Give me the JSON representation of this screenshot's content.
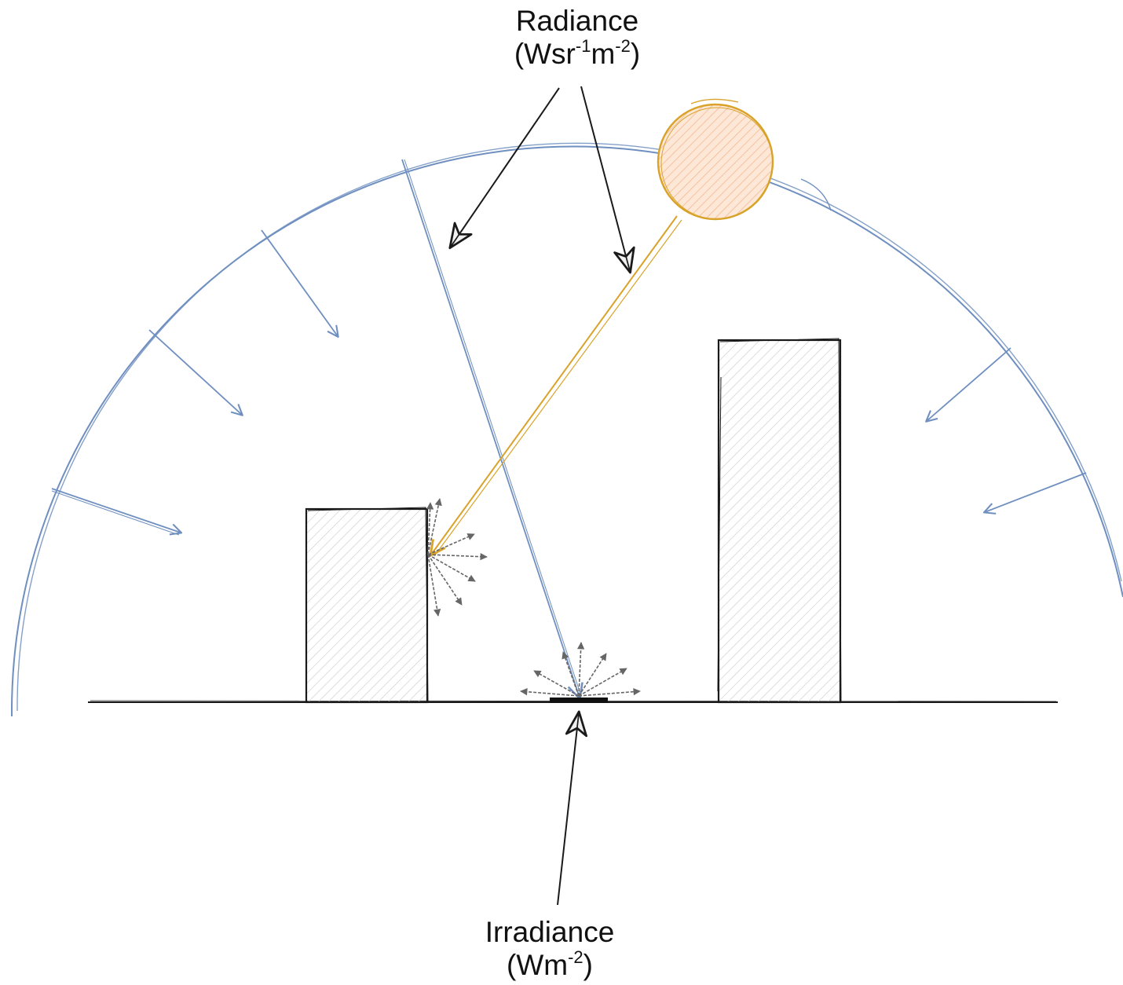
{
  "labels": {
    "radiance": {
      "title": "Radiance",
      "unit_open": "(Wsr",
      "unit_exp1": "-1",
      "unit_mid": "m",
      "unit_exp2": "-2",
      "unit_close": ")"
    },
    "irradiance": {
      "title": "Irradiance",
      "unit_open": "(Wm",
      "unit_exp": "-2",
      "unit_close": ")"
    }
  },
  "colors": {
    "sky": "#6f8fc0",
    "sun": "#d9a32a",
    "sun_fill": "#f7c9a8",
    "ink": "#1a1a1a",
    "scatter": "#666666",
    "hatch": "#c8c8c8"
  },
  "icons": {
    "sun": "sun-circle-icon",
    "sky": "sky-dome-icon"
  }
}
